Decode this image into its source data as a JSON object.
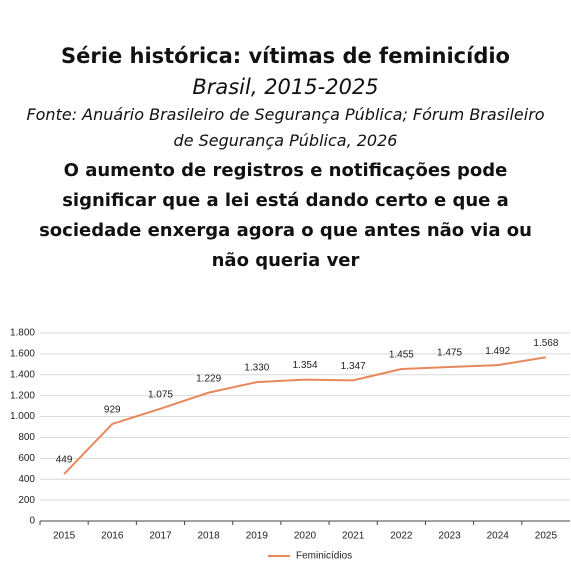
{
  "chart_data": {
    "type": "line",
    "title": "Série histórica: vítimas de feminicídio",
    "subtitle": "Brasil, 2015-2025",
    "source": "Fonte:  Anuário Brasileiro de Segurança Pública; Fórum Brasileiro de Segurança Pública, 2026",
    "annotation": "O aumento de registros e notificações pode significar que a lei está dando certo e que a sociedade enxerga agora o que antes não via ou não queria ver",
    "categories": [
      "2015",
      "2016",
      "2017",
      "2018",
      "2019",
      "2020",
      "2021",
      "2022",
      "2023",
      "2024",
      "2025"
    ],
    "series": [
      {
        "name": "Feminicídios",
        "color": "#e8875e",
        "values": [
          449,
          929,
          1075,
          1229,
          1330,
          1354,
          1347,
          1455,
          1475,
          1492,
          1568
        ],
        "value_labels": [
          "449",
          "929",
          "1.075",
          "1.229",
          "1.330",
          "1.354",
          "1.347",
          "1.455",
          "1.475",
          "1.492",
          "1.568"
        ]
      }
    ],
    "ylim": [
      0,
      1800
    ],
    "yticks": [
      0,
      200,
      400,
      600,
      800,
      {
        "value": 1000,
        "label": "1.000"
      },
      {
        "value": 1200,
        "label": "1.200"
      },
      {
        "value": 1400,
        "label": "1.400"
      },
      {
        "value": 1600,
        "label": "1.600"
      },
      {
        "value": 1800,
        "label": "1.800"
      }
    ],
    "grid": true,
    "legend": "bottom"
  }
}
